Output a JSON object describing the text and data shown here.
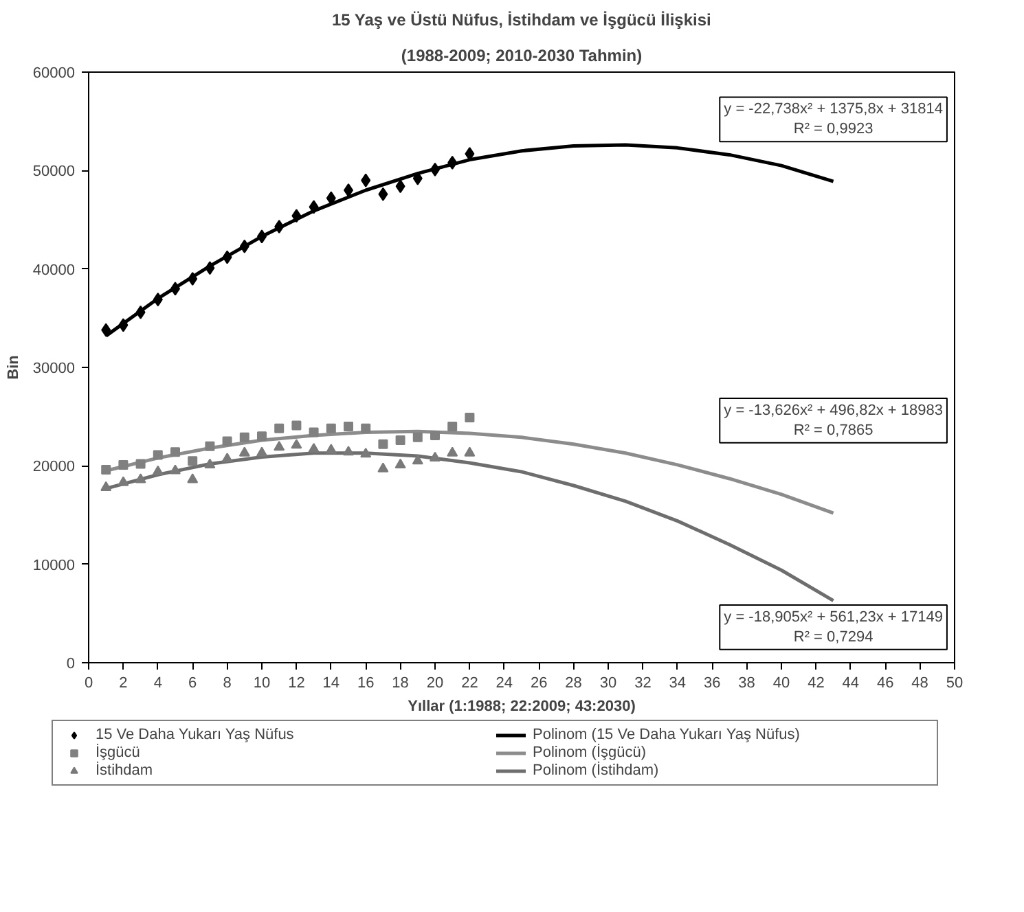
{
  "chart_data": {
    "type": "scatter",
    "title": "15 Yaş ve Üstü Nüfus, İstihdam ve İşgücü İlişkisi",
    "subtitle": "(1988-2009; 2010-2030 Tahmin)",
    "xlabel": "Yıllar (1:1988; 22:2009; 43:2030)",
    "ylabel": "Bin",
    "x": [
      1,
      2,
      3,
      4,
      5,
      6,
      7,
      8,
      9,
      10,
      11,
      12,
      13,
      14,
      15,
      16,
      17,
      18,
      19,
      20,
      21,
      22
    ],
    "series": [
      {
        "name": "15 Ve Daha Yukarı Yaş Nüfus",
        "color": "#000000",
        "marker": "diamond",
        "values": [
          33800,
          34300,
          35600,
          36900,
          38000,
          39000,
          40100,
          41200,
          42300,
          43300,
          44300,
          45400,
          46300,
          47200,
          48000,
          49000,
          47600,
          48400,
          49200,
          50100,
          50800,
          51700
        ]
      },
      {
        "name": "İşgücü",
        "color": "#808080",
        "marker": "square",
        "values": [
          19600,
          20100,
          20200,
          21100,
          21400,
          20500,
          22000,
          22500,
          22900,
          23000,
          23800,
          24100,
          23400,
          23800,
          24000,
          23800,
          22200,
          22600,
          22900,
          23100,
          24000,
          24900
        ]
      },
      {
        "name": "İstihdam",
        "color": "#7a7a7a",
        "marker": "triangle",
        "values": [
          17800,
          18300,
          18600,
          19400,
          19500,
          18600,
          20100,
          20700,
          21300,
          21300,
          21900,
          22100,
          21700,
          21600,
          21400,
          21200,
          19700,
          20100,
          20500,
          20800,
          21300,
          21300
        ]
      },
      {
        "name": "Polinom (15 Ve Daha Yukarı Yaş Nüfus)",
        "type": "line",
        "color": "#000000",
        "marker": "none",
        "x": [
          1,
          4,
          7,
          10,
          13,
          16,
          19,
          22,
          25,
          28,
          31,
          34,
          37,
          40,
          43
        ],
        "values": [
          33200,
          37000,
          40300,
          43300,
          45900,
          48000,
          49700,
          51100,
          52000,
          52500,
          52600,
          52300,
          51600,
          50500,
          48900
        ]
      },
      {
        "name": "Polinom (İşgücü)",
        "type": "line",
        "color": "#8c8c8c",
        "marker": "none",
        "x": [
          1,
          4,
          7,
          10,
          13,
          16,
          19,
          22,
          25,
          28,
          31,
          34,
          37,
          40,
          43
        ],
        "values": [
          19500,
          20800,
          21800,
          22600,
          23100,
          23400,
          23500,
          23300,
          22900,
          22200,
          21300,
          20100,
          18700,
          17100,
          15200
        ]
      },
      {
        "name": "Polinom (İstihdam)",
        "type": "line",
        "color": "#6e6e6e",
        "marker": "none",
        "x": [
          1,
          4,
          7,
          10,
          13,
          16,
          19,
          22,
          25,
          28,
          31,
          34,
          37,
          40,
          43
        ],
        "values": [
          17700,
          19100,
          20200,
          20900,
          21300,
          21300,
          21000,
          20300,
          19400,
          18000,
          16400,
          14400,
          12000,
          9400,
          6300
        ]
      }
    ],
    "annotations": [
      "y = -22,738x² + 1375,8x + 31814\nR² = 0,9923",
      "y = -13,626x² + 496,82x + 18983\nR² = 0,7865",
      "y = -18,905x² + 561,23x + 17149\nR² = 0,7294"
    ],
    "xlim": [
      0,
      50
    ],
    "xticks": [
      0,
      2,
      4,
      6,
      8,
      10,
      12,
      14,
      16,
      18,
      20,
      22,
      24,
      26,
      28,
      30,
      32,
      34,
      36,
      38,
      40,
      42,
      44,
      46,
      48,
      50
    ],
    "ylim": [
      0,
      60000
    ],
    "yticks": [
      0,
      10000,
      20000,
      30000,
      40000,
      50000,
      60000
    ],
    "grid": false,
    "legend": "bottom"
  }
}
